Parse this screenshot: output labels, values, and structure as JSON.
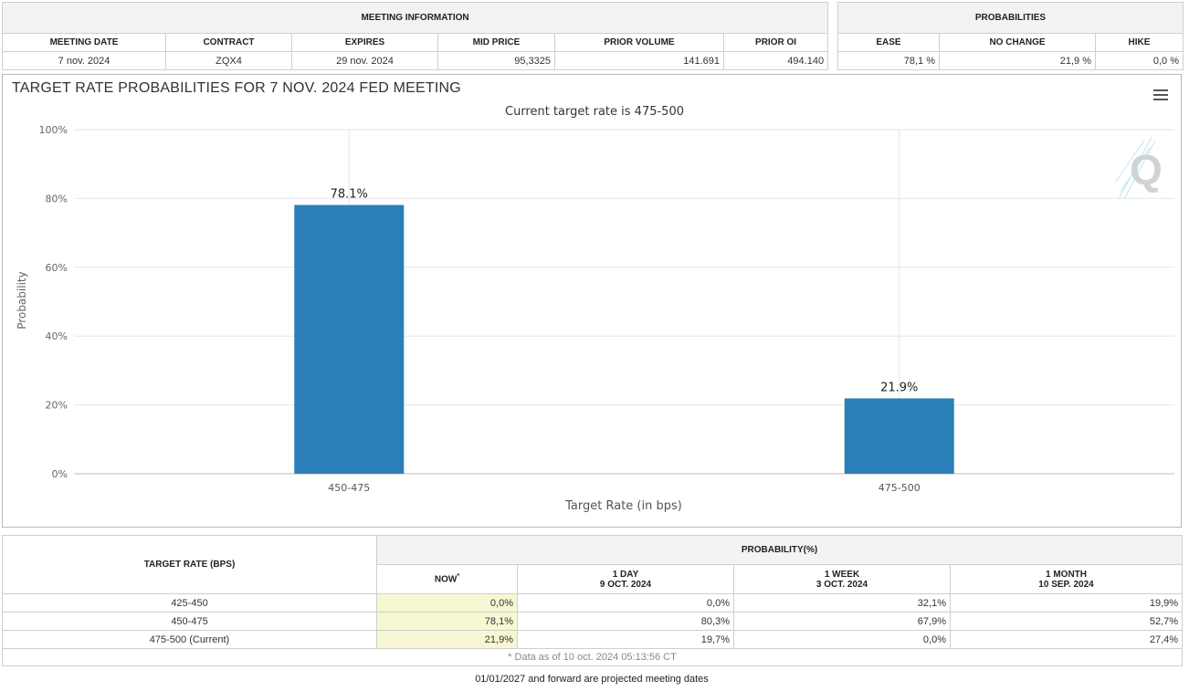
{
  "meeting_info": {
    "title": "MEETING INFORMATION",
    "headers": [
      "MEETING DATE",
      "CONTRACT",
      "EXPIRES",
      "MID PRICE",
      "PRIOR VOLUME",
      "PRIOR OI"
    ],
    "values": [
      "7 nov. 2024",
      "ZQX4",
      "29 nov. 2024",
      "95,3325",
      "141.691",
      "494.140"
    ]
  },
  "probabilities": {
    "title": "PROBABILITIES",
    "headers": [
      "EASE",
      "NO CHANGE",
      "HIKE"
    ],
    "values": [
      "78,1 %",
      "21,9 %",
      "0,0 %"
    ]
  },
  "chart": {
    "menu_icon": "hamburger-menu-icon",
    "watermark_icon": "q-logo-icon",
    "watermark_letter": "Q",
    "bar_color": "#2a7fb8"
  },
  "chart_data": {
    "type": "bar",
    "title": "TARGET RATE PROBABILITIES FOR 7 NOV. 2024 FED MEETING",
    "subtitle": "Current target rate is 475-500",
    "xlabel": "Target Rate (in bps)",
    "ylabel": "Probability",
    "categories": [
      "450-475",
      "475-500"
    ],
    "values": [
      78.1,
      21.9
    ],
    "data_labels": [
      "78.1%",
      "21.9%"
    ],
    "ylim": [
      0,
      100
    ],
    "yticks": [
      0,
      20,
      40,
      60,
      80,
      100
    ],
    "ytick_labels": [
      "0%",
      "20%",
      "40%",
      "60%",
      "80%",
      "100%"
    ],
    "grid": true,
    "legend": "none"
  },
  "rate_table": {
    "target_header": "TARGET RATE (BPS)",
    "prob_header": "PROBABILITY(%)",
    "columns": [
      {
        "label": "NOW",
        "sub": "",
        "mark": "*"
      },
      {
        "label": "1 DAY",
        "sub": "9 OCT. 2024",
        "mark": ""
      },
      {
        "label": "1 WEEK",
        "sub": "3 OCT. 2024",
        "mark": ""
      },
      {
        "label": "1 MONTH",
        "sub": "10 SEP. 2024",
        "mark": ""
      }
    ],
    "rows": [
      {
        "rate": "425-450",
        "values": [
          "0,0%",
          "0,0%",
          "32,1%",
          "19,9%"
        ]
      },
      {
        "rate": "450-475",
        "values": [
          "78,1%",
          "80,3%",
          "67,9%",
          "52,7%"
        ]
      },
      {
        "rate": "475-500 (Current)",
        "values": [
          "21,9%",
          "19,7%",
          "0,0%",
          "27,4%"
        ]
      }
    ],
    "footnote": "* Data as of 10 oct. 2024 05:13:56 CT"
  },
  "projected_note": "01/01/2027 and forward are projected meeting dates"
}
